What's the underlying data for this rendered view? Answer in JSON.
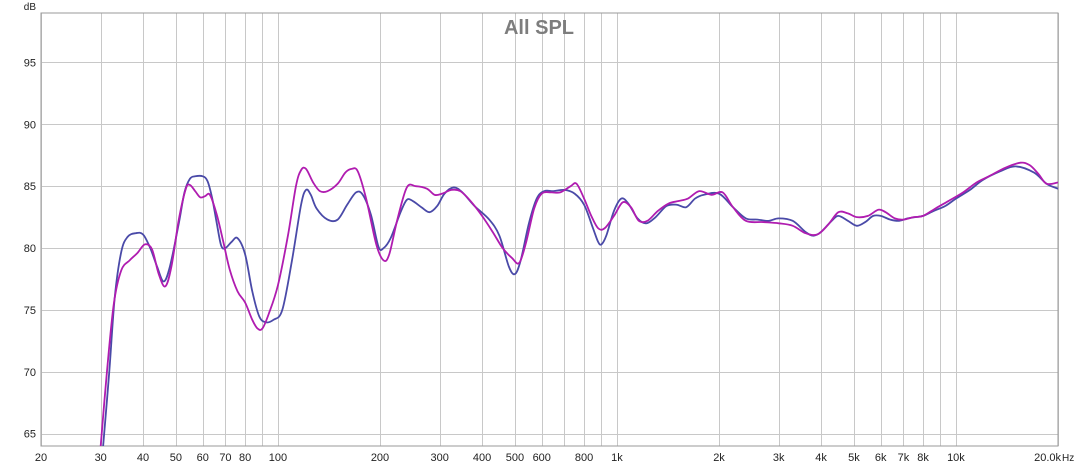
{
  "chart_data": {
    "type": "line",
    "title": "All SPL",
    "ylabel": "dB",
    "xunit": "Hz",
    "xscale": "log",
    "xlim": [
      20,
      20000
    ],
    "ylim": [
      64,
      99
    ],
    "grid": true,
    "legend": "none",
    "y_ticks": [
      65,
      70,
      75,
      80,
      85,
      90,
      95
    ],
    "x_ticks": [
      {
        "value": 20,
        "label": "20"
      },
      {
        "value": 30,
        "label": "30"
      },
      {
        "value": 40,
        "label": "40"
      },
      {
        "value": 50,
        "label": "50"
      },
      {
        "value": 60,
        "label": "60"
      },
      {
        "value": 70,
        "label": "70"
      },
      {
        "value": 80,
        "label": "80"
      },
      {
        "value": 100,
        "label": "100"
      },
      {
        "value": 200,
        "label": "200"
      },
      {
        "value": 300,
        "label": "300"
      },
      {
        "value": 400,
        "label": "400"
      },
      {
        "value": 500,
        "label": "500"
      },
      {
        "value": 600,
        "label": "600"
      },
      {
        "value": 800,
        "label": "800"
      },
      {
        "value": 1000,
        "label": "1k"
      },
      {
        "value": 2000,
        "label": "2k"
      },
      {
        "value": 3000,
        "label": "3k"
      },
      {
        "value": 4000,
        "label": "4k"
      },
      {
        "value": 5000,
        "label": "5k"
      },
      {
        "value": 6000,
        "label": "6k"
      },
      {
        "value": 7000,
        "label": "7k"
      },
      {
        "value": 8000,
        "label": "8k"
      },
      {
        "value": 10000,
        "label": "10k"
      },
      {
        "value": 20000,
        "label": "20.0k"
      }
    ],
    "x_gridlines": [
      20,
      30,
      40,
      50,
      60,
      70,
      80,
      90,
      100,
      200,
      300,
      400,
      500,
      600,
      700,
      800,
      900,
      1000,
      2000,
      3000,
      4000,
      5000,
      6000,
      7000,
      8000,
      9000,
      10000,
      20000
    ],
    "series": [
      {
        "color": "#4a4aa8",
        "points": [
          [
            30.5,
            64
          ],
          [
            31.8,
            70
          ],
          [
            33,
            76
          ],
          [
            34.5,
            79.7
          ],
          [
            36,
            80.9
          ],
          [
            38,
            81.2
          ],
          [
            40,
            81.1
          ],
          [
            42,
            80
          ],
          [
            44,
            78.5
          ],
          [
            46,
            77.3
          ],
          [
            48,
            78.5
          ],
          [
            51,
            82
          ],
          [
            53,
            84.5
          ],
          [
            55,
            85.6
          ],
          [
            57,
            85.8
          ],
          [
            60,
            85.8
          ],
          [
            62,
            85.4
          ],
          [
            64,
            84
          ],
          [
            66,
            82
          ],
          [
            68,
            80.2
          ],
          [
            70,
            80
          ],
          [
            73,
            80.5
          ],
          [
            76,
            80.8
          ],
          [
            80,
            79.5
          ],
          [
            84,
            76.5
          ],
          [
            88,
            74.5
          ],
          [
            92,
            74
          ],
          [
            97,
            74.2
          ],
          [
            103,
            75
          ],
          [
            110,
            79
          ],
          [
            117,
            83.5
          ],
          [
            121,
            84.7
          ],
          [
            125,
            84.3
          ],
          [
            130,
            83.2
          ],
          [
            140,
            82.3
          ],
          [
            150,
            82.3
          ],
          [
            160,
            83.5
          ],
          [
            170,
            84.5
          ],
          [
            178,
            84.3
          ],
          [
            188,
            82.7
          ],
          [
            198,
            80.1
          ],
          [
            205,
            80
          ],
          [
            215,
            80.8
          ],
          [
            230,
            82.9
          ],
          [
            240,
            83.9
          ],
          [
            250,
            83.8
          ],
          [
            265,
            83.3
          ],
          [
            280,
            82.9
          ],
          [
            295,
            83.4
          ],
          [
            310,
            84.4
          ],
          [
            330,
            84.9
          ],
          [
            350,
            84.5
          ],
          [
            380,
            83.4
          ],
          [
            420,
            82.3
          ],
          [
            450,
            81
          ],
          [
            480,
            78.5
          ],
          [
            500,
            77.9
          ],
          [
            520,
            79
          ],
          [
            550,
            82
          ],
          [
            580,
            84
          ],
          [
            610,
            84.6
          ],
          [
            650,
            84.6
          ],
          [
            700,
            84.7
          ],
          [
            750,
            84.4
          ],
          [
            800,
            83.5
          ],
          [
            850,
            81.6
          ],
          [
            880,
            80.5
          ],
          [
            900,
            80.3
          ],
          [
            930,
            81
          ],
          [
            980,
            83
          ],
          [
            1030,
            84
          ],
          [
            1080,
            83.6
          ],
          [
            1150,
            82.4
          ],
          [
            1220,
            82
          ],
          [
            1300,
            82.5
          ],
          [
            1400,
            83.4
          ],
          [
            1500,
            83.5
          ],
          [
            1600,
            83.3
          ],
          [
            1700,
            84
          ],
          [
            1800,
            84.3
          ],
          [
            2000,
            84.4
          ],
          [
            2200,
            83.3
          ],
          [
            2400,
            82.4
          ],
          [
            2600,
            82.3
          ],
          [
            2800,
            82.2
          ],
          [
            3000,
            82.4
          ],
          [
            3300,
            82.2
          ],
          [
            3600,
            81.3
          ],
          [
            3800,
            81
          ],
          [
            4000,
            81.3
          ],
          [
            4300,
            82.2
          ],
          [
            4500,
            82.6
          ],
          [
            4800,
            82.2
          ],
          [
            5100,
            81.8
          ],
          [
            5400,
            82.1
          ],
          [
            5700,
            82.6
          ],
          [
            6000,
            82.6
          ],
          [
            6400,
            82.3
          ],
          [
            6800,
            82.2
          ],
          [
            7200,
            82.4
          ],
          [
            7600,
            82.5
          ],
          [
            8000,
            82.6
          ],
          [
            8600,
            83
          ],
          [
            9300,
            83.4
          ],
          [
            10000,
            84
          ],
          [
            11000,
            84.7
          ],
          [
            12000,
            85.5
          ],
          [
            13500,
            86.2
          ],
          [
            15000,
            86.6
          ],
          [
            17000,
            86.1
          ],
          [
            18500,
            85.2
          ],
          [
            20000,
            84.8
          ]
        ]
      },
      {
        "color": "#b01cb0",
        "points": [
          [
            30,
            64
          ],
          [
            31.3,
            70
          ],
          [
            32.8,
            75.5
          ],
          [
            34.5,
            78.2
          ],
          [
            36.5,
            79
          ],
          [
            38.5,
            79.6
          ],
          [
            40.5,
            80.3
          ],
          [
            42.5,
            79.9
          ],
          [
            44.5,
            77.9
          ],
          [
            46.5,
            76.9
          ],
          [
            48.5,
            78.5
          ],
          [
            51,
            82.3
          ],
          [
            53.5,
            84.8
          ],
          [
            55,
            85.1
          ],
          [
            57,
            84.6
          ],
          [
            59,
            84.1
          ],
          [
            61,
            84.2
          ],
          [
            63,
            84.3
          ],
          [
            66,
            82.7
          ],
          [
            69,
            80.5
          ],
          [
            72,
            78.3
          ],
          [
            76,
            76.5
          ],
          [
            80,
            75.6
          ],
          [
            84,
            74.2
          ],
          [
            87,
            73.5
          ],
          [
            90,
            73.5
          ],
          [
            94,
            74.7
          ],
          [
            100,
            77
          ],
          [
            107,
            81
          ],
          [
            113,
            85
          ],
          [
            117,
            86.3
          ],
          [
            121,
            86.4
          ],
          [
            127,
            85.3
          ],
          [
            133,
            84.6
          ],
          [
            140,
            84.6
          ],
          [
            150,
            85.2
          ],
          [
            158,
            86.1
          ],
          [
            165,
            86.4
          ],
          [
            172,
            86.2
          ],
          [
            182,
            84
          ],
          [
            195,
            80.3
          ],
          [
            205,
            79
          ],
          [
            213,
            79.5
          ],
          [
            225,
            82.3
          ],
          [
            240,
            84.9
          ],
          [
            255,
            85
          ],
          [
            275,
            84.8
          ],
          [
            290,
            84.3
          ],
          [
            305,
            84.4
          ],
          [
            325,
            84.7
          ],
          [
            345,
            84.6
          ],
          [
            370,
            83.8
          ],
          [
            400,
            82.6
          ],
          [
            430,
            81.3
          ],
          [
            460,
            80
          ],
          [
            490,
            79.2
          ],
          [
            515,
            78.8
          ],
          [
            540,
            80.5
          ],
          [
            570,
            83.2
          ],
          [
            600,
            84.4
          ],
          [
            640,
            84.5
          ],
          [
            680,
            84.5
          ],
          [
            730,
            85
          ],
          [
            760,
            85.2
          ],
          [
            800,
            84
          ],
          [
            840,
            82.6
          ],
          [
            880,
            81.6
          ],
          [
            920,
            81.6
          ],
          [
            980,
            82.6
          ],
          [
            1040,
            83.7
          ],
          [
            1100,
            83.3
          ],
          [
            1160,
            82.2
          ],
          [
            1230,
            82.2
          ],
          [
            1320,
            83
          ],
          [
            1420,
            83.6
          ],
          [
            1520,
            83.8
          ],
          [
            1620,
            84
          ],
          [
            1750,
            84.6
          ],
          [
            1900,
            84.3
          ],
          [
            2050,
            84.5
          ],
          [
            2200,
            83.3
          ],
          [
            2400,
            82.2
          ],
          [
            2700,
            82.1
          ],
          [
            3000,
            82
          ],
          [
            3300,
            81.8
          ],
          [
            3600,
            81.2
          ],
          [
            3900,
            81.1
          ],
          [
            4200,
            81.9
          ],
          [
            4500,
            82.9
          ],
          [
            4800,
            82.8
          ],
          [
            5100,
            82.5
          ],
          [
            5500,
            82.6
          ],
          [
            5900,
            83.1
          ],
          [
            6200,
            82.9
          ],
          [
            6600,
            82.4
          ],
          [
            7000,
            82.3
          ],
          [
            7500,
            82.5
          ],
          [
            8000,
            82.6
          ],
          [
            8700,
            83.2
          ],
          [
            9500,
            83.8
          ],
          [
            10500,
            84.5
          ],
          [
            11500,
            85.3
          ],
          [
            12500,
            85.8
          ],
          [
            14000,
            86.5
          ],
          [
            15500,
            86.9
          ],
          [
            16500,
            86.7
          ],
          [
            17500,
            86
          ],
          [
            18500,
            85.2
          ],
          [
            20000,
            85.3
          ]
        ]
      }
    ]
  }
}
